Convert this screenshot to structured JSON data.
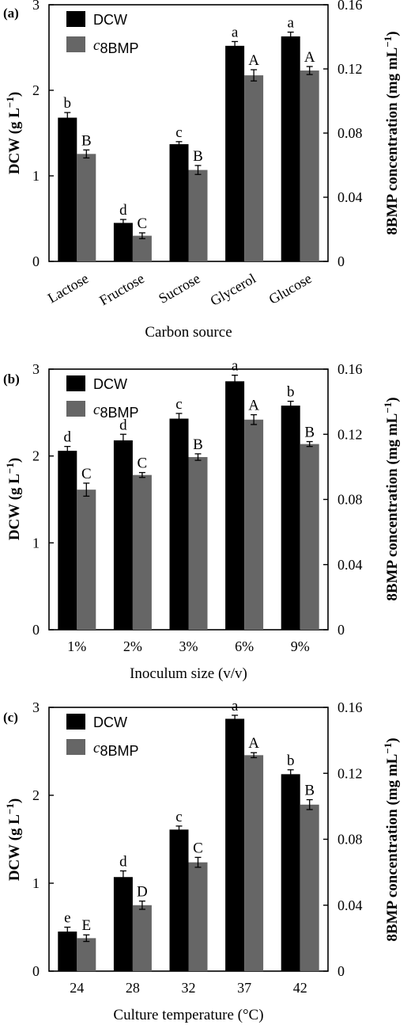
{
  "chart_data": [
    {
      "type": "bar",
      "panel_label": "(a)",
      "xlabel": "Carbon source",
      "ylabel": "DCW (g L",
      "ylabel_sup": "−1",
      "ylabel_close": ")",
      "y2label": "8BMP concentration (mg mL",
      "y2label_sup": "−1",
      "y2label_close": ")",
      "ylim": [
        0,
        3
      ],
      "y2lim": [
        0,
        0.16
      ],
      "yticks": [
        "0",
        "1",
        "2",
        "3"
      ],
      "y2ticks": [
        "0",
        "0.04",
        "0.08",
        "0.12",
        "0.16"
      ],
      "rotated_categories": true,
      "categories": [
        "Lactose",
        "Fructose",
        "Sucrose",
        "Glycerol",
        "Glucose"
      ],
      "legend": {
        "placement": "top-left",
        "dcw": "DCW",
        "c8_c": "c",
        "c8_sub": "8BMP"
      },
      "series": [
        {
          "key": "dcw",
          "color": "#000000",
          "values": [
            1.68,
            0.45,
            1.37,
            2.52,
            2.63
          ],
          "errors": [
            0.06,
            0.04,
            0.03,
            0.05,
            0.05
          ],
          "letters": [
            "b",
            "d",
            "c",
            "a",
            "a"
          ]
        },
        {
          "key": "c8",
          "color": "#666666",
          "values": [
            0.067,
            0.016,
            0.057,
            0.116,
            0.119
          ],
          "errors": [
            0.0025,
            0.0018,
            0.0028,
            0.0035,
            0.0025
          ],
          "letters": [
            "B",
            "C",
            "B",
            "A",
            "A"
          ]
        }
      ]
    },
    {
      "type": "bar",
      "panel_label": "(b)",
      "xlabel": "Inoculum size (v/v)",
      "ylabel": "DCW (g L",
      "ylabel_sup": "−1",
      "ylabel_close": ")",
      "y2label": "8BMP concentration (mg mL",
      "y2label_sup": "−1",
      "y2label_close": ")",
      "ylim": [
        0,
        3
      ],
      "y2lim": [
        0,
        0.16
      ],
      "yticks": [
        "0",
        "1",
        "2",
        "3"
      ],
      "y2ticks": [
        "0",
        "0.04",
        "0.08",
        "0.12",
        "0.16"
      ],
      "rotated_categories": false,
      "categories": [
        "1%",
        "2%",
        "3%",
        "6%",
        "9%"
      ],
      "legend": {
        "placement": "top-left",
        "dcw": "DCW",
        "c8_c": "c",
        "c8_sub": "8BMP"
      },
      "series": [
        {
          "key": "dcw",
          "color": "#000000",
          "values": [
            2.06,
            2.18,
            2.43,
            2.86,
            2.58
          ],
          "errors": [
            0.05,
            0.07,
            0.06,
            0.07,
            0.05
          ],
          "letters": [
            "d",
            "d",
            "c",
            "a",
            "b"
          ]
        },
        {
          "key": "c8",
          "color": "#666666",
          "values": [
            0.086,
            0.095,
            0.106,
            0.129,
            0.114
          ],
          "errors": [
            0.004,
            0.0015,
            0.002,
            0.003,
            0.0015
          ],
          "letters": [
            "C",
            "C",
            "B",
            "A",
            "B"
          ]
        }
      ]
    },
    {
      "type": "bar",
      "panel_label": "(c)",
      "xlabel": "Culture temperature (°C)",
      "ylabel": "DCW (g L",
      "ylabel_sup": "−1",
      "ylabel_close": ")",
      "y2label": "8BMP concentration (mg mL",
      "y2label_sup": "−1",
      "y2label_close": ")",
      "ylim": [
        0,
        3
      ],
      "y2lim": [
        0,
        0.16
      ],
      "yticks": [
        "0",
        "1",
        "2",
        "3"
      ],
      "y2ticks": [
        "0",
        "0.04",
        "0.08",
        "0.12",
        "0.16"
      ],
      "rotated_categories": false,
      "categories": [
        "24",
        "28",
        "32",
        "37",
        "42"
      ],
      "legend": {
        "placement": "top-left",
        "dcw": "DCW",
        "c8_c": "c",
        "c8_sub": "8BMP"
      },
      "series": [
        {
          "key": "dcw",
          "color": "#000000",
          "values": [
            0.45,
            1.07,
            1.61,
            2.87,
            2.24
          ],
          "errors": [
            0.05,
            0.07,
            0.04,
            0.04,
            0.05
          ],
          "letters": [
            "e",
            "d",
            "c",
            "a",
            "b"
          ]
        },
        {
          "key": "c8",
          "color": "#666666",
          "values": [
            0.02,
            0.04,
            0.066,
            0.131,
            0.101
          ],
          "errors": [
            0.002,
            0.0025,
            0.003,
            0.0015,
            0.003
          ],
          "letters": [
            "E",
            "D",
            "C",
            "A",
            "B"
          ]
        }
      ]
    }
  ]
}
